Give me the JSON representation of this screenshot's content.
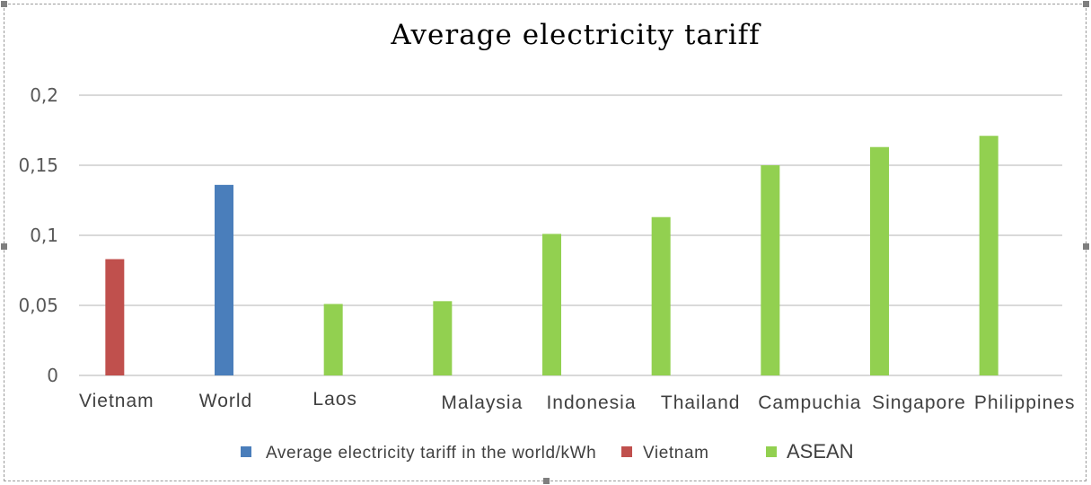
{
  "chart_data": {
    "type": "bar",
    "title": "Average electricity tariff",
    "categories": [
      "Vietnam",
      "World",
      "Laos",
      "Malaysia",
      "Indonesia",
      "Thailand",
      "Campuchia",
      "Singapore",
      "Philippines"
    ],
    "values": [
      0.083,
      0.136,
      0.051,
      0.053,
      0.101,
      0.113,
      0.15,
      0.163,
      0.171
    ],
    "groups": [
      "Vietnam",
      "World",
      "ASEAN",
      "ASEAN",
      "ASEAN",
      "ASEAN",
      "ASEAN",
      "ASEAN",
      "ASEAN"
    ],
    "ylim": [
      0,
      0.2
    ],
    "yticks": [
      0,
      0.05,
      0.1,
      0.15,
      0.2
    ],
    "ytick_labels": [
      "0",
      "0,05",
      "0,1",
      "0,15",
      "0,2"
    ],
    "xlabel": "",
    "ylabel": "",
    "grid": true,
    "legend_position": "bottom",
    "legend": [
      {
        "label": "Average electricity tariff in the world/kWh",
        "color": "#4a7ebb"
      },
      {
        "label": "Vietnam",
        "color": "#c0504d"
      },
      {
        "label": "ASEAN",
        "color": "#92d050"
      }
    ],
    "colors": {
      "World": "#4a7ebb",
      "Vietnam": "#c0504d",
      "ASEAN": "#92d050"
    }
  }
}
